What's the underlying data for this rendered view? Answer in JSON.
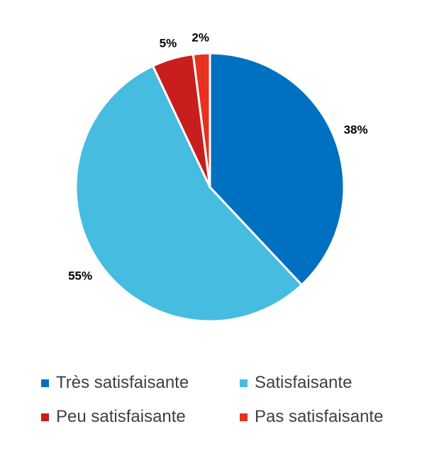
{
  "chart_data": {
    "type": "pie",
    "categories": [
      "Très satisfaisante",
      "Satisfaisante",
      "Peu satisfaisante",
      "Pas satisfaisante"
    ],
    "values": [
      38,
      55,
      5,
      2
    ],
    "labels": [
      "38%",
      "55%",
      "5%",
      "2%"
    ],
    "colors": [
      "#0070C0",
      "#47BCE1",
      "#C81E1E",
      "#E8321E"
    ],
    "legend_position": "bottom",
    "start_angle": "12 o'clock",
    "direction": "clockwise"
  }
}
